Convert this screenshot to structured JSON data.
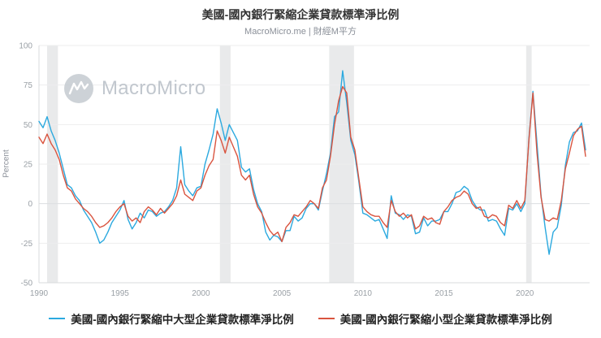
{
  "header": {
    "title": "美國-國內銀行緊縮企業貸款標準淨比例",
    "subtitle": "MacroMicro.me | 財經M平方"
  },
  "watermark": {
    "text": "MacroMicro"
  },
  "legend": [
    {
      "label": "美國-國內銀行緊縮中大型企業貸款標準淨比例",
      "color": "#2ba9df"
    },
    {
      "label": "美國-國內銀行緊縮小型企業貸款標準淨比例",
      "color": "#d9543f"
    }
  ],
  "chart_data": {
    "type": "line",
    "title": "美國-國內銀行緊縮企業貸款標準淨比例",
    "subtitle": "MacroMicro.me | 財經M平方",
    "xlabel": "",
    "ylabel": "Percent",
    "xlim": [
      1990,
      2024
    ],
    "ylim": [
      -50,
      100
    ],
    "yticks": [
      -50,
      -25,
      0,
      25,
      50,
      75,
      100
    ],
    "xticks": [
      1990,
      1995,
      2000,
      2005,
      2010,
      2015,
      2020
    ],
    "grid": true,
    "legend_position": "bottom",
    "x_start": 1990,
    "x_step": 0.25,
    "recession_bands": [
      [
        1990.5,
        1991.17
      ],
      [
        2001.17,
        2001.83
      ],
      [
        2007.92,
        2009.45
      ],
      [
        2020.08,
        2020.42
      ]
    ],
    "series": [
      {
        "name": "美國-國內銀行緊縮中大型企業貸款標準淨比例",
        "color": "#2ba9df",
        "values": [
          52,
          48,
          55,
          46,
          40,
          32,
          22,
          12,
          10,
          5,
          2,
          -4,
          -8,
          -12,
          -18,
          -25,
          -23,
          -18,
          -12,
          -8,
          -4,
          2,
          -10,
          -16,
          -12,
          -6,
          -9,
          -4,
          -5,
          -8,
          -6,
          -5,
          -2,
          2,
          10,
          36,
          12,
          8,
          5,
          10,
          11,
          25,
          34,
          44,
          60,
          51,
          40,
          50,
          45,
          40,
          23,
          20,
          22,
          9,
          0,
          -5,
          -18,
          -23,
          -20,
          -21,
          -24,
          -17,
          -17,
          -8,
          -11,
          -9,
          -3,
          0,
          0,
          -4,
          8,
          19,
          32,
          55,
          58,
          84,
          64,
          40,
          31,
          14,
          -6,
          -7,
          -9,
          -11,
          -10,
          -16,
          -22,
          5,
          -6,
          -7,
          -10,
          -7,
          -8,
          -19,
          -18,
          -9,
          -14,
          -11,
          -11,
          -10,
          -5,
          -5,
          0,
          7,
          8,
          11,
          9,
          2,
          -2,
          -4,
          -4,
          -11,
          -10,
          -11,
          -16,
          -20,
          -3,
          -4,
          0,
          -5,
          0,
          41,
          71,
          38,
          5,
          -15,
          -32,
          -18,
          -15,
          -1,
          24,
          39,
          45,
          46,
          51,
          34
        ]
      },
      {
        "name": "美國-國內銀行緊縮小型企業貸款標準淨比例",
        "color": "#d9543f",
        "values": [
          42,
          38,
          44,
          38,
          34,
          28,
          18,
          10,
          8,
          3,
          0,
          -3,
          -5,
          -8,
          -12,
          -15,
          -14,
          -12,
          -9,
          -5,
          -2,
          0,
          -8,
          -11,
          -9,
          -12,
          -5,
          -2,
          -4,
          -7,
          -3,
          -6,
          -3,
          0,
          5,
          15,
          6,
          4,
          2,
          8,
          10,
          18,
          24,
          28,
          46,
          40,
          32,
          42,
          36,
          30,
          18,
          15,
          18,
          6,
          -2,
          -6,
          -12,
          -17,
          -20,
          -18,
          -24,
          -15,
          -12,
          -7,
          -8,
          -5,
          -2,
          2,
          0,
          -3,
          10,
          15,
          30,
          50,
          65,
          74,
          70,
          42,
          34,
          16,
          -2,
          -5,
          -7,
          -8,
          -8,
          -12,
          -15,
          2,
          -5,
          -8,
          -6,
          -9,
          -7,
          -16,
          -14,
          -8,
          -10,
          -9,
          -12,
          -13,
          -5,
          -2,
          2,
          4,
          5,
          8,
          6,
          0,
          -3,
          -2,
          -8,
          -9,
          -7,
          -8,
          -12,
          -14,
          -1,
          -3,
          2,
          -3,
          2,
          40,
          70,
          32,
          4,
          -10,
          -11,
          -9,
          -10,
          2,
          22,
          32,
          43,
          47,
          49,
          30
        ]
      }
    ]
  }
}
